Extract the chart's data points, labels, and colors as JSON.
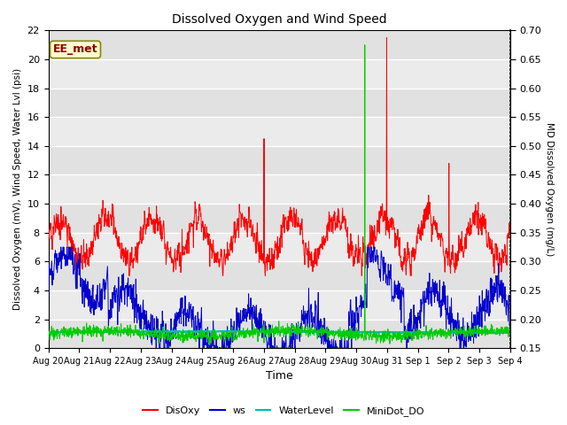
{
  "title": "Dissolved Oxygen and Wind Speed",
  "ylabel_left": "Dissolved Oxygen (mV), Wind Speed, Water Lvl (psi)",
  "ylabel_right": "MD Dissolved Oxygen (mg/L)",
  "xlabel": "Time",
  "ylim_left": [
    0,
    22
  ],
  "ylim_right": [
    0.15,
    0.7
  ],
  "yticks_left": [
    0,
    2,
    4,
    6,
    8,
    10,
    12,
    14,
    16,
    18,
    20,
    22
  ],
  "yticks_right": [
    0.15,
    0.2,
    0.25,
    0.3,
    0.35,
    0.4,
    0.45,
    0.5,
    0.55,
    0.6,
    0.65,
    0.7
  ],
  "annotation_text": "EE_met",
  "annotation_color": "#8B0000",
  "annotation_box_color": "#FFFFCC",
  "colors": {
    "DisOxy": "#FF0000",
    "ws": "#0000CC",
    "WaterLevel": "#00BBBB",
    "MiniDot_DO": "#00CC00"
  },
  "legend_labels": [
    "DisOxy",
    "ws",
    "WaterLevel",
    "MiniDot_DO"
  ],
  "background_color": "#EBEBEB",
  "grid_color": "#FFFFFF",
  "date_labels": [
    "Aug 20",
    "Aug 21",
    "Aug 22",
    "Aug 23",
    "Aug 24",
    "Aug 25",
    "Aug 26",
    "Aug 27",
    "Aug 28",
    "Aug 29",
    "Aug 30",
    "Aug 31",
    "Sep 1",
    "Sep 2",
    "Sep 3",
    "Sep 4"
  ],
  "n_points": 1500,
  "seed": 42
}
